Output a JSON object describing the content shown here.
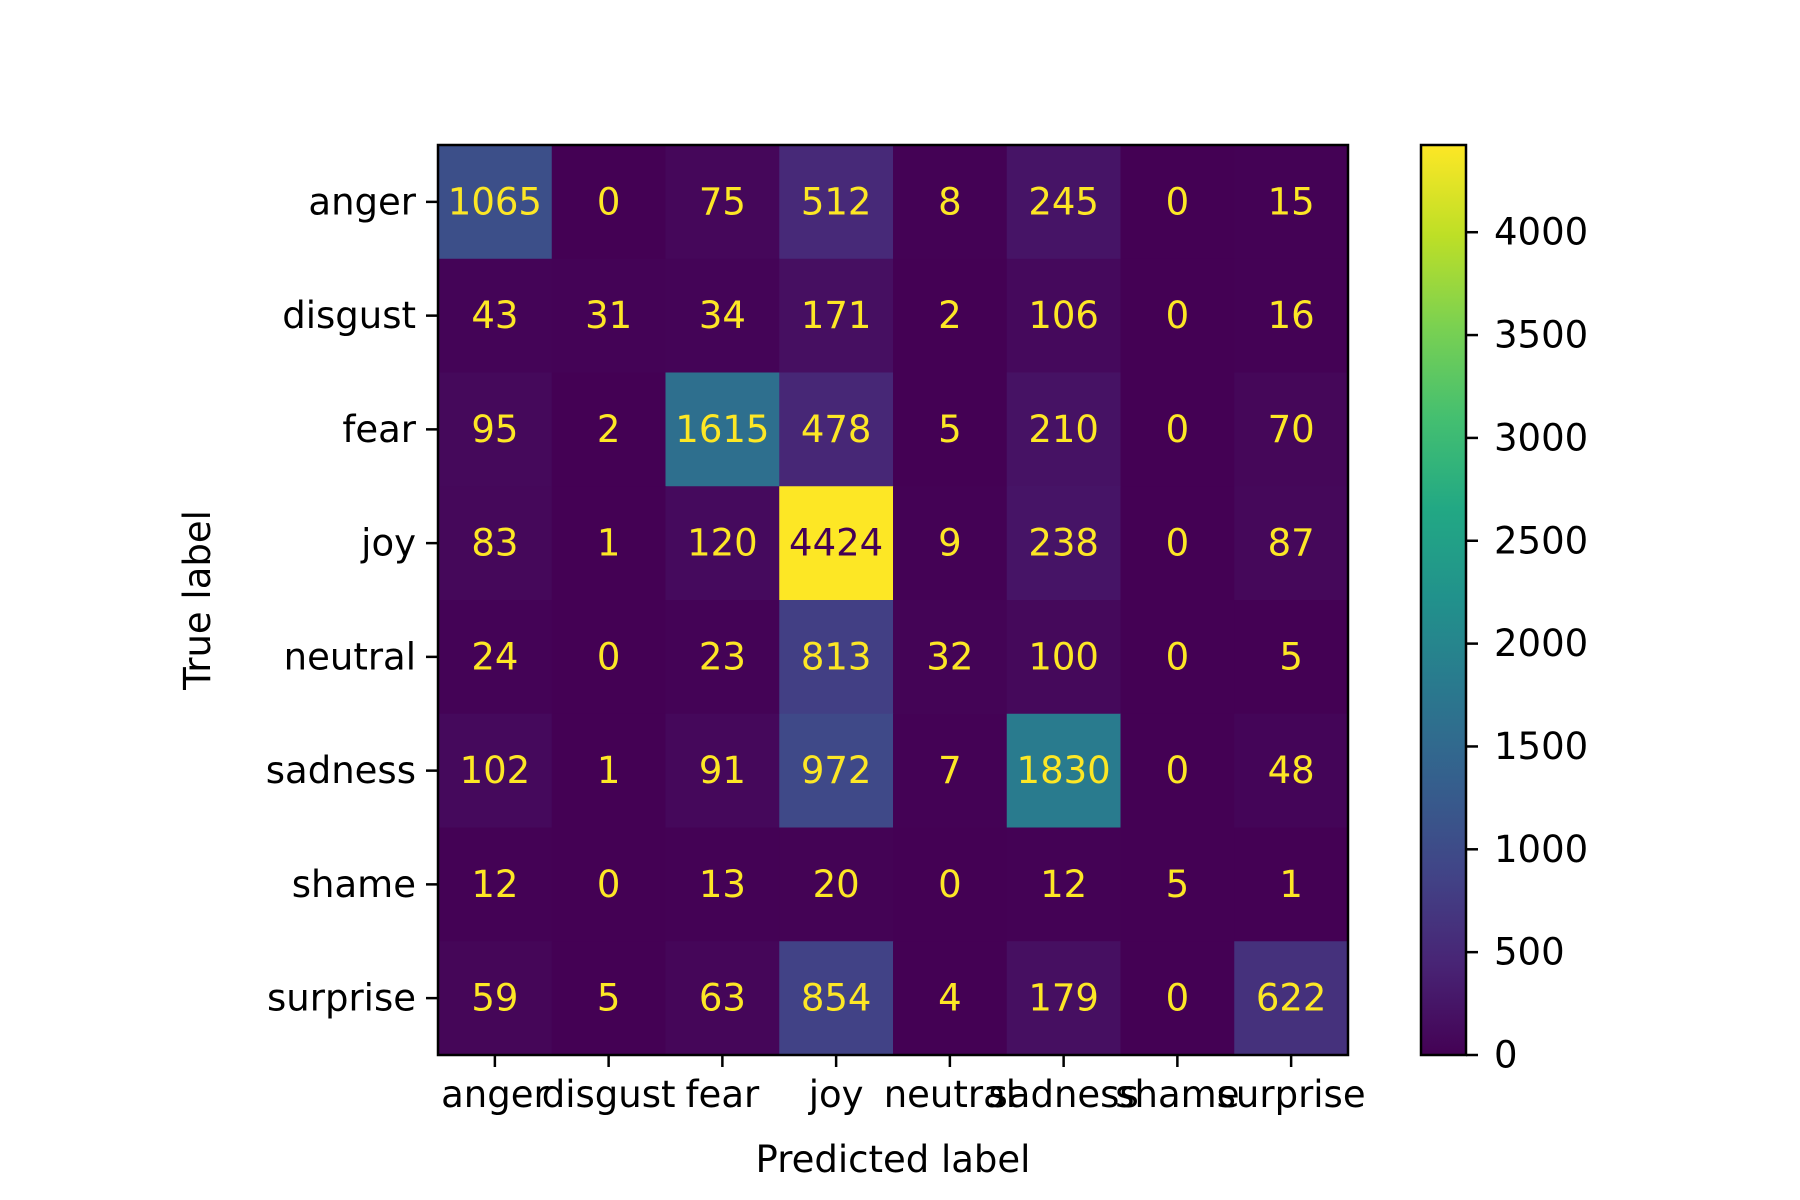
{
  "chart_data": {
    "type": "heatmap",
    "title": "",
    "xlabel": "Predicted label",
    "ylabel": "True label",
    "categories_x": [
      "anger",
      "disgust",
      "fear",
      "joy",
      "neutral",
      "sadness",
      "shame",
      "surprise"
    ],
    "categories_y": [
      "anger",
      "disgust",
      "fear",
      "joy",
      "neutral",
      "sadness",
      "shame",
      "surprise"
    ],
    "values": [
      [
        1065,
        0,
        75,
        512,
        8,
        245,
        0,
        15
      ],
      [
        43,
        31,
        34,
        171,
        2,
        106,
        0,
        16
      ],
      [
        95,
        2,
        1615,
        478,
        5,
        210,
        0,
        70
      ],
      [
        83,
        1,
        120,
        4424,
        9,
        238,
        0,
        87
      ],
      [
        24,
        0,
        23,
        813,
        32,
        100,
        0,
        5
      ],
      [
        102,
        1,
        91,
        972,
        7,
        1830,
        0,
        48
      ],
      [
        12,
        0,
        13,
        20,
        0,
        12,
        5,
        1
      ],
      [
        59,
        5,
        63,
        854,
        4,
        179,
        0,
        622
      ]
    ],
    "colormap": "viridis",
    "vmin": 0,
    "vmax": 4424,
    "colorbar_ticks": [
      0,
      500,
      1000,
      1500,
      2000,
      2500,
      3000,
      3500,
      4000
    ],
    "annotation_colors": {
      "on_dark": "#fde725",
      "on_bright": "#440154"
    },
    "grid": false,
    "legend": "colorbar-right"
  }
}
